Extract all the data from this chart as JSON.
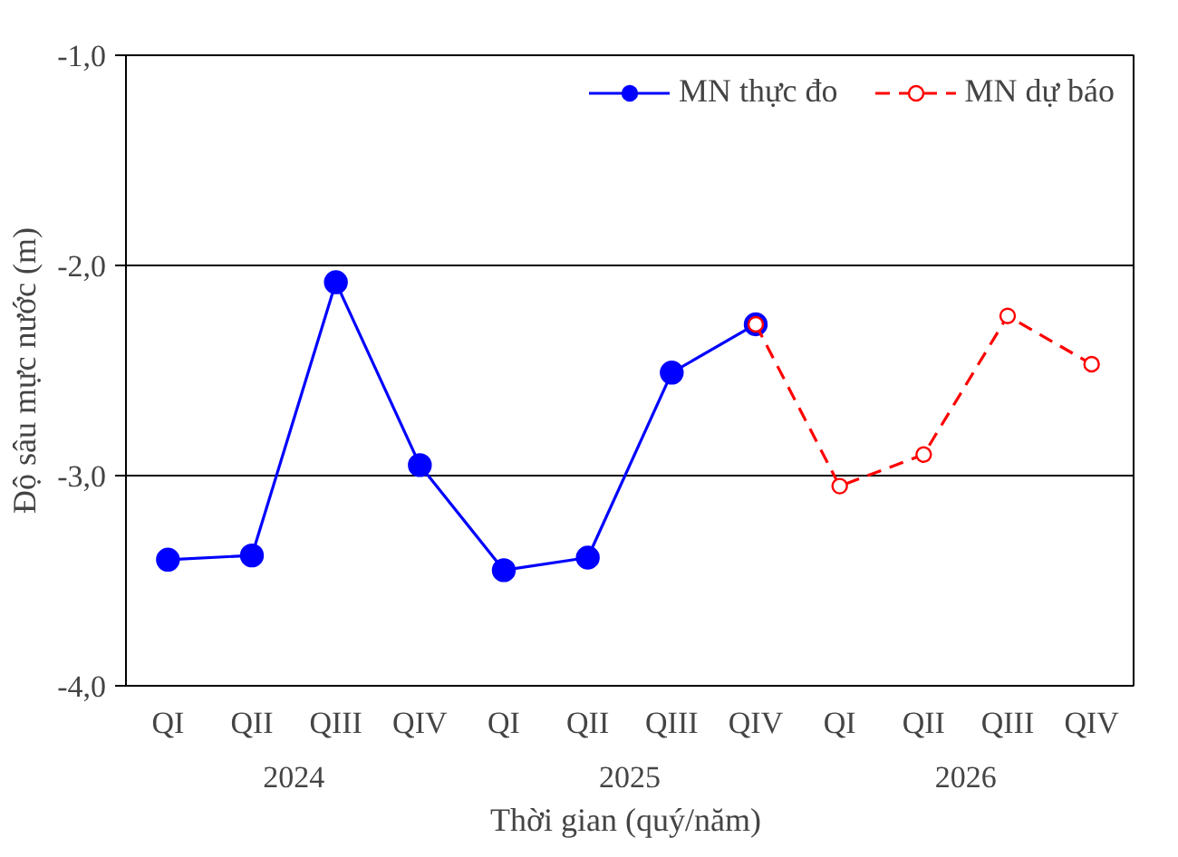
{
  "chart_data": {
    "type": "line",
    "xlabel": "Thời gian  (quý/năm)",
    "ylabel": "Độ sâu mực nước (m)",
    "categories": [
      "QI",
      "QII",
      "QIII",
      "QIV",
      "QI",
      "QII",
      "QIII",
      "QIV",
      "QI",
      "QII",
      "QIII",
      "QIV"
    ],
    "annotations": [
      "2024",
      "2025",
      "2026"
    ],
    "series": [
      {
        "name": "MN thực đo",
        "color": "#0000ff",
        "line_style": "solid",
        "marker": "circle",
        "values": [
          -3.4,
          -3.38,
          -2.08,
          -2.95,
          -3.45,
          -3.39,
          -2.51,
          -2.28,
          null,
          null,
          null,
          null
        ]
      },
      {
        "name": "MN dự báo",
        "color": "#ff0000",
        "line_style": "dashed",
        "marker": "circle",
        "values": [
          null,
          null,
          null,
          null,
          null,
          null,
          null,
          -2.28,
          -3.05,
          -2.9,
          -2.24,
          -2.47
        ]
      }
    ],
    "ylim": [
      -4,
      -1
    ],
    "yticks": [
      {
        "value": -4,
        "label": "-4,0"
      },
      {
        "value": -3,
        "label": "-3,0"
      },
      {
        "value": -2,
        "label": "-2,0"
      },
      {
        "value": -1,
        "label": "-1,0"
      }
    ],
    "grid": "y",
    "legend": "top right"
  }
}
